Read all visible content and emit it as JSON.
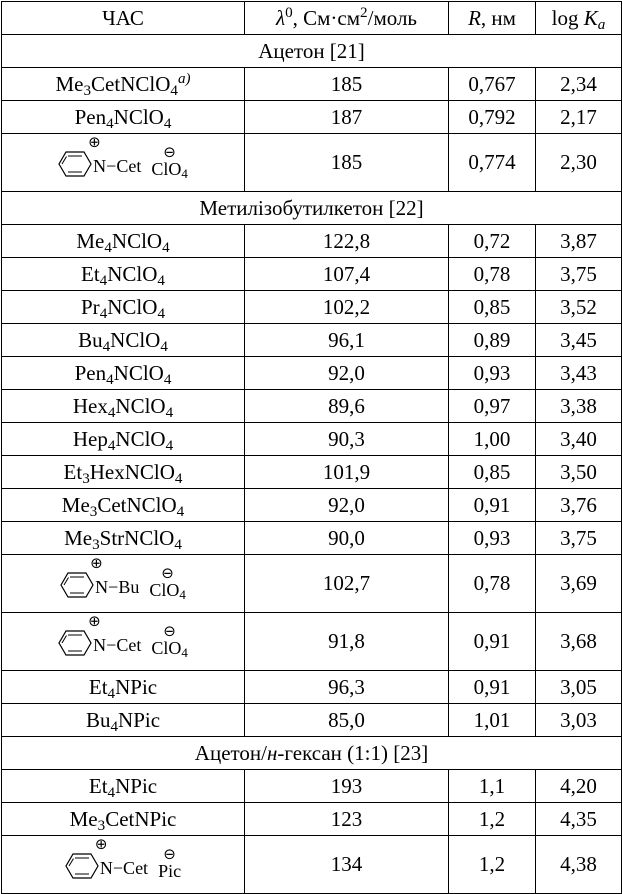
{
  "headers": {
    "c1": "ЧАС",
    "c2_sym": "λ",
    "c2_sup": "0",
    "c2_unit_a": ", См·см",
    "c2_unit_sup": "2",
    "c2_unit_b": "/моль",
    "c3_sym": "R",
    "c3_unit": ", нм",
    "c4_a": "log ",
    "c4_sym": "K",
    "c4_sub": "a"
  },
  "sections": [
    {
      "title": "Ацетон [21]",
      "rows": [
        {
          "name": [
            [
              "Me",
              "3"
            ],
            [
              "CetNClO",
              "4"
            ]
          ],
          "note": "a)",
          "lambda": "185",
          "r": "0,767",
          "logk": "2,34"
        },
        {
          "name": [
            [
              "Pen",
              "4"
            ],
            [
              "NClO",
              "4"
            ]
          ],
          "lambda": "187",
          "r": "0,792",
          "logk": "2,17"
        },
        {
          "pyridinium": {
            "group": "N−Cet",
            "anion": "ClO",
            "anion_sub": "4",
            "plus": "⊕",
            "minus": "⊖"
          },
          "lambda": "185",
          "r": "0,774",
          "logk": "2,30"
        }
      ]
    },
    {
      "title": "Метилізобутилкетон [22]",
      "rows": [
        {
          "name": [
            [
              "Me",
              "4"
            ],
            [
              "NClO",
              "4"
            ]
          ],
          "lambda": "122,8",
          "r": "0,72",
          "logk": "3,87"
        },
        {
          "name": [
            [
              "Et",
              "4"
            ],
            [
              "NClO",
              "4"
            ]
          ],
          "lambda": "107,4",
          "r": "0,78",
          "logk": "3,75"
        },
        {
          "name": [
            [
              "Pr",
              "4"
            ],
            [
              "NClO",
              "4"
            ]
          ],
          "lambda": "102,2",
          "r": "0,85",
          "logk": "3,52"
        },
        {
          "name": [
            [
              "Bu",
              "4"
            ],
            [
              "NClO",
              "4"
            ]
          ],
          "lambda": "96,1",
          "r": "0,89",
          "logk": "3,45"
        },
        {
          "name": [
            [
              "Pen",
              "4"
            ],
            [
              "NClO",
              "4"
            ]
          ],
          "lambda": "92,0",
          "r": "0,93",
          "logk": "3,43"
        },
        {
          "name": [
            [
              "Hex",
              "4"
            ],
            [
              "NClO",
              "4"
            ]
          ],
          "lambda": "89,6",
          "r": "0,97",
          "logk": "3,38"
        },
        {
          "name": [
            [
              "Hep",
              "4"
            ],
            [
              "NClO",
              "4"
            ]
          ],
          "lambda": "90,3",
          "r": "1,00",
          "logk": "3,40"
        },
        {
          "name": [
            [
              "Et",
              "3"
            ],
            [
              "HexNClO",
              "4"
            ]
          ],
          "lambda": "101,9",
          "r": "0,85",
          "logk": "3,50"
        },
        {
          "name": [
            [
              "Me",
              "3"
            ],
            [
              "CetNClO",
              "4"
            ]
          ],
          "lambda": "92,0",
          "r": "0,91",
          "logk": "3,76"
        },
        {
          "name": [
            [
              "Me",
              "3"
            ],
            [
              "StrNClO",
              "4"
            ]
          ],
          "lambda": "90,0",
          "r": "0,93",
          "logk": "3,75"
        },
        {
          "pyridinium": {
            "group": "N−Bu",
            "anion": "ClO",
            "anion_sub": "4",
            "plus": "⊕",
            "minus": "⊖"
          },
          "lambda": "102,7",
          "r": "0,78",
          "logk": "3,69"
        },
        {
          "pyridinium": {
            "group": "N−Cet",
            "anion": "ClO",
            "anion_sub": "4",
            "plus": "⊕",
            "minus": "⊖"
          },
          "lambda": "91,8",
          "r": "0,91",
          "logk": "3,68"
        },
        {
          "name": [
            [
              "Et",
              "4"
            ],
            [
              "NPic",
              ""
            ]
          ],
          "lambda": "96,3",
          "r": "0,91",
          "logk": "3,05"
        },
        {
          "name": [
            [
              "Bu",
              "4"
            ],
            [
              "NPic",
              ""
            ]
          ],
          "lambda": "85,0",
          "r": "1,01",
          "logk": "3,03"
        }
      ]
    },
    {
      "title_a": "Ацетон/",
      "title_i": "н",
      "title_b": "-гексан (1:1) [23]",
      "rows": [
        {
          "name": [
            [
              "Et",
              "4"
            ],
            [
              "NPic",
              ""
            ]
          ],
          "lambda": "193",
          "r": "1,1",
          "logk": "4,20"
        },
        {
          "name": [
            [
              "Me",
              "3"
            ],
            [
              "CetNPic",
              ""
            ]
          ],
          "lambda": "123",
          "r": "1,2",
          "logk": "4,35"
        },
        {
          "pyridinium": {
            "group": "N−Cet",
            "anion": "Pic",
            "anion_sub": "",
            "plus": "⊕",
            "minus": "⊖"
          },
          "lambda": "134",
          "r": "1,2",
          "logk": "4,38"
        }
      ]
    }
  ]
}
